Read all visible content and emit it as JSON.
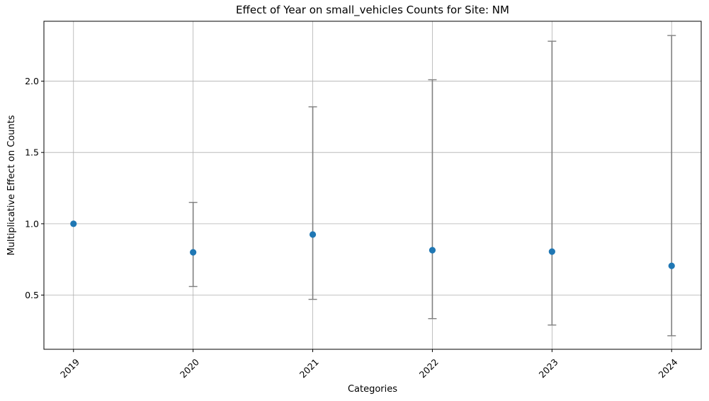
{
  "chart_data": {
    "type": "scatter",
    "title": "Effect of Year on small_vehicles Counts for Site: NM",
    "xlabel": "Categories",
    "ylabel": "Multiplicative Effect on Counts",
    "categories": [
      "2019",
      "2020",
      "2021",
      "2022",
      "2023",
      "2024"
    ],
    "series": [
      {
        "values": [
          1.0,
          0.8,
          0.925,
          0.815,
          0.805,
          0.705
        ],
        "lower": [
          1.0,
          0.56,
          0.47,
          0.335,
          0.29,
          0.215
        ],
        "upper": [
          1.0,
          1.15,
          1.82,
          2.01,
          2.28,
          2.32
        ],
        "color": "#1f77b4",
        "error_bar_color": "#808080"
      }
    ],
    "yticks": [
      "0.5",
      "1.0",
      "1.5",
      "2.0"
    ],
    "ylim": [
      0.12,
      2.42
    ],
    "grid": true,
    "xtick_rotation": 45
  }
}
